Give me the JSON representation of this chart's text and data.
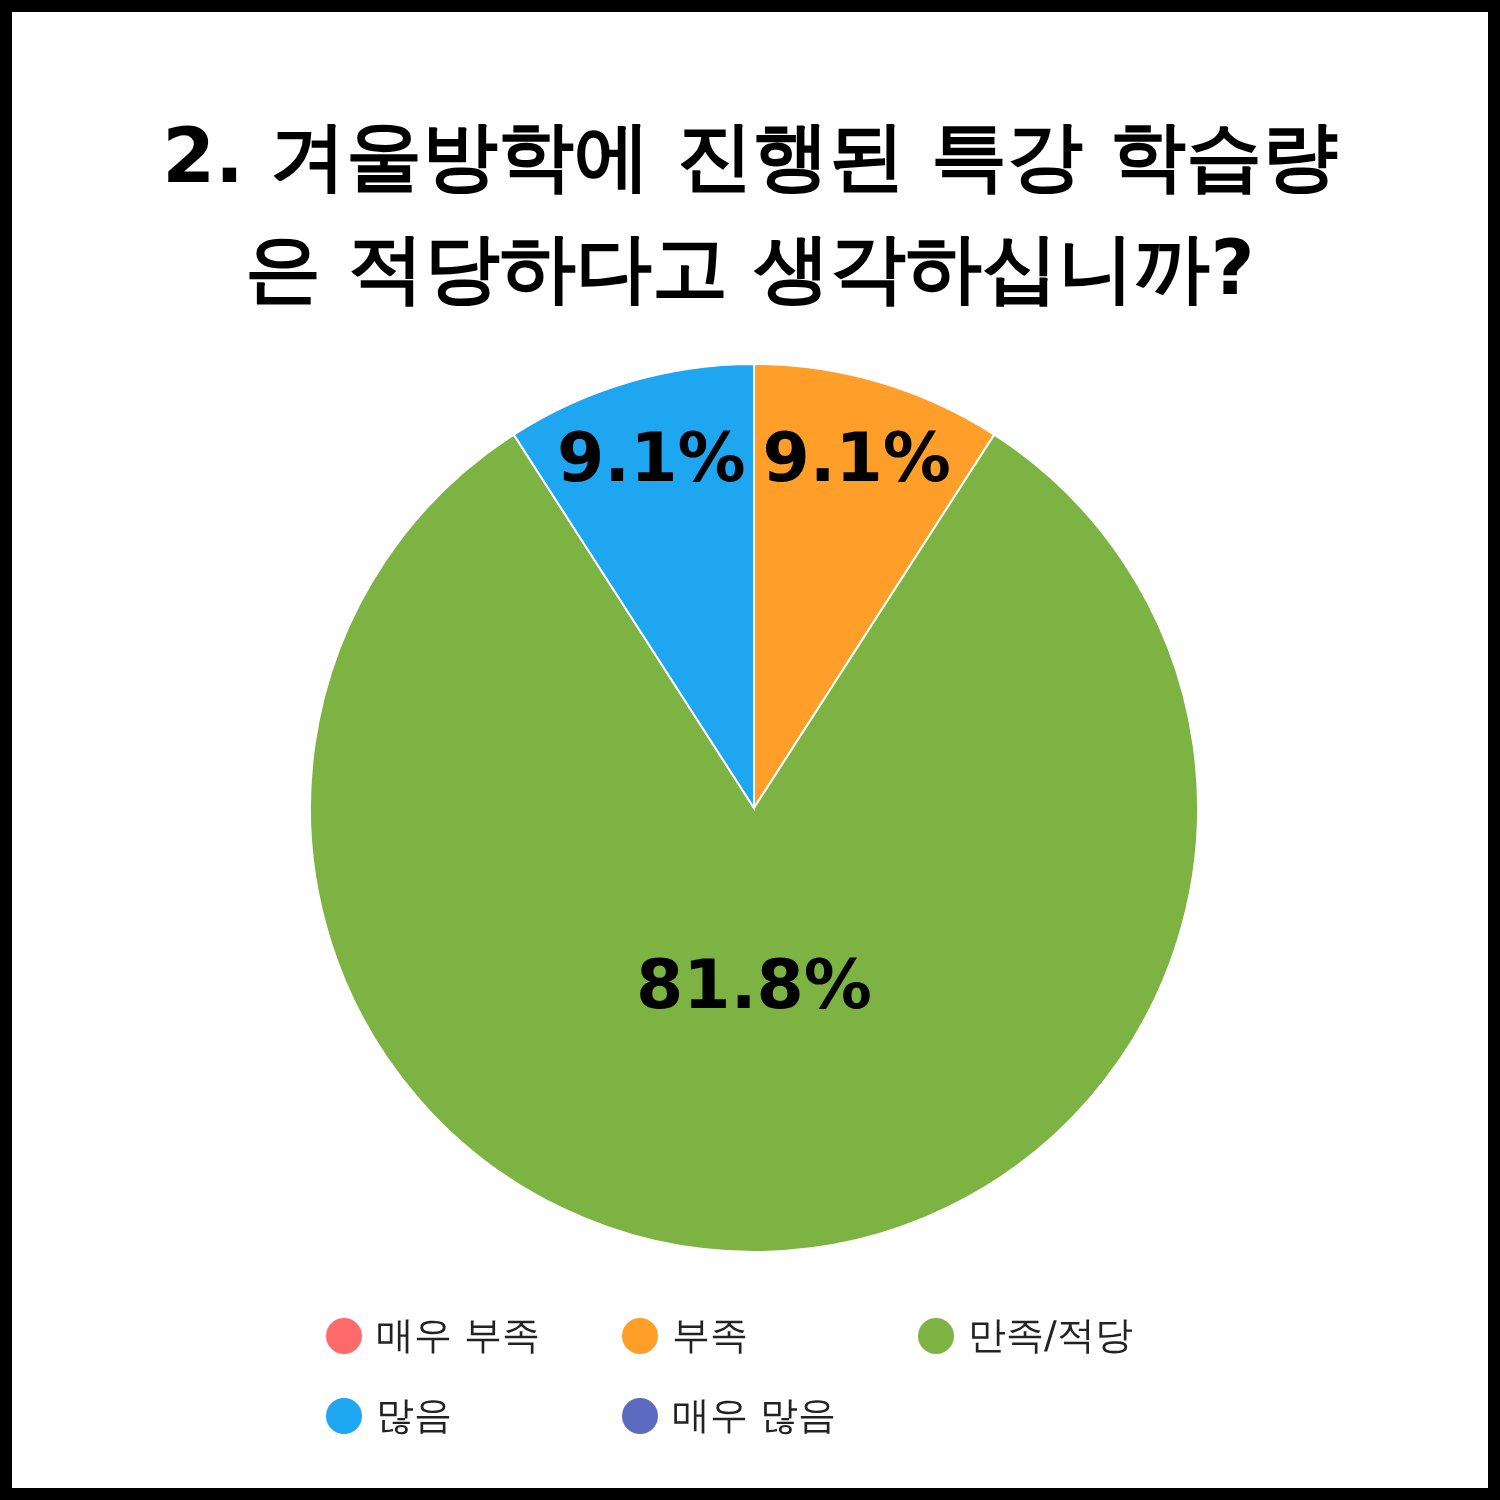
{
  "chart_data": {
    "type": "pie",
    "title": "2. 겨울방학에 진행된 특강 학습량\n은 적당하다고 생각하십니까?",
    "categories": [
      "매우 부족",
      "부족",
      "만족/적당",
      "많음",
      "매우 많음"
    ],
    "values": [
      0,
      9.1,
      81.8,
      9.1,
      0
    ],
    "colors": [
      "#ff6b6b",
      "#ff9f2a",
      "#7cb342",
      "#1ea7f0",
      "#5c6bc0"
    ],
    "value_labels": [
      null,
      "9.1%",
      "81.8%",
      "9.1%",
      null
    ],
    "legend": "bottom"
  }
}
